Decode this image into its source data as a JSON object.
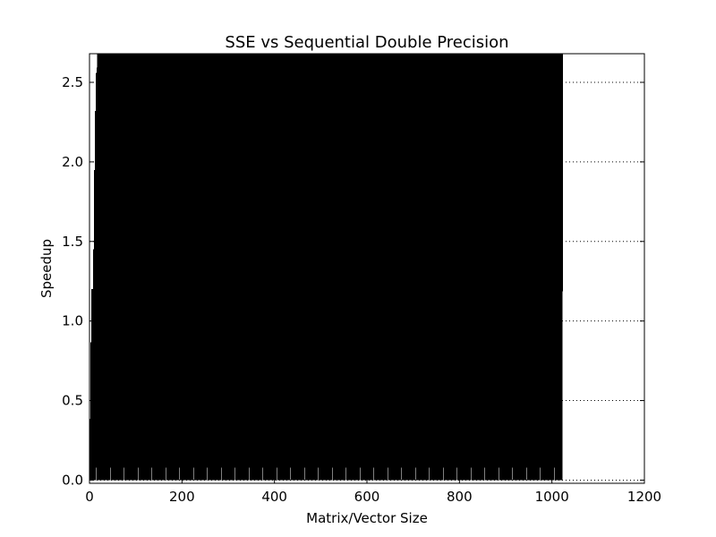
{
  "chart_data": {
    "type": "line",
    "title": "SSE vs Sequential Double Precision",
    "xlabel": "Matrix/Vector Size",
    "ylabel": "Speedup",
    "xlim": [
      0,
      1200
    ],
    "ylim": [
      -0.02,
      2.68
    ],
    "xticks": [
      0,
      200,
      400,
      600,
      800,
      1000,
      1200
    ],
    "yticks": [
      0.0,
      0.5,
      1.0,
      1.5,
      2.0,
      2.5
    ],
    "xtick_labels": [
      "0",
      "200",
      "400",
      "600",
      "800",
      "1000",
      "1200"
    ],
    "ytick_labels": [
      "0.0",
      "0.5",
      "1.0",
      "1.5",
      "2.0",
      "2.5"
    ],
    "grid": "y-dotted",
    "series": [
      {
        "x_start": 1,
        "x_end": 1023,
        "x_step": 1,
        "period": 2,
        "low": 0.0,
        "high_envelope": [
          [
            1,
            0.2
          ],
          [
            4,
            1.2
          ],
          [
            8,
            1.2
          ],
          [
            12,
            2.2
          ],
          [
            16,
            2.68
          ],
          [
            1023,
            2.68
          ]
        ],
        "color": "#000000"
      }
    ],
    "colors": {
      "line": "#000000",
      "grid": "#000000",
      "background": "#ffffff"
    }
  }
}
